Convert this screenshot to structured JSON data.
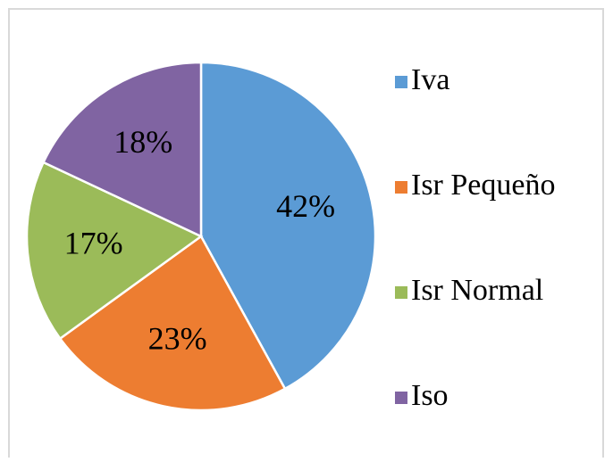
{
  "chart_data": {
    "type": "pie",
    "categories": [
      "Iva",
      "Isr Pequeño",
      "Isr Normal",
      "Iso"
    ],
    "values": [
      42,
      23,
      17,
      18
    ],
    "value_labels": [
      "42%",
      "23%",
      "17%",
      "18%"
    ],
    "colors": [
      "#5b9bd5",
      "#ed7d31",
      "#9bbb59",
      "#8064a2"
    ],
    "legend": "right"
  }
}
